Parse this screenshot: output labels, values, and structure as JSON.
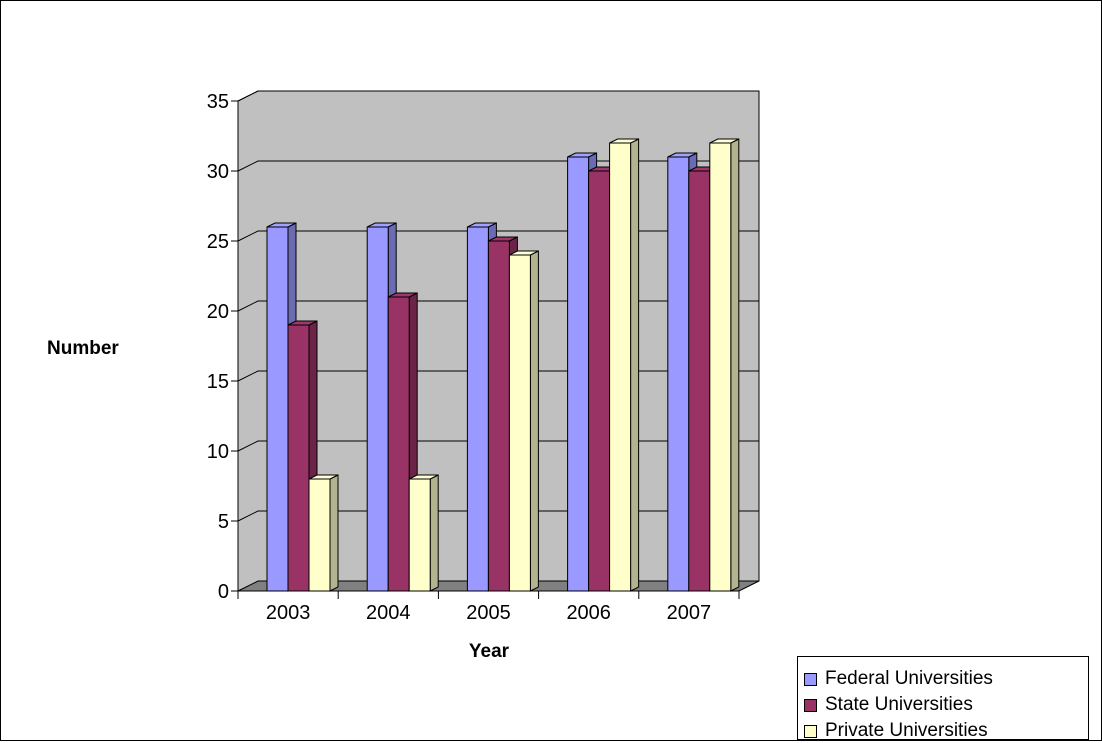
{
  "chart_data": {
    "type": "bar",
    "categories": [
      "2003",
      "2004",
      "2005",
      "2006",
      "2007"
    ],
    "series": [
      {
        "name": "Federal Universities",
        "values": [
          26,
          26,
          26,
          31,
          31
        ],
        "color": "#9999ff"
      },
      {
        "name": "State Universities",
        "values": [
          19,
          21,
          25,
          30,
          30
        ],
        "color": "#993366"
      },
      {
        "name": "Private Universities",
        "values": [
          8,
          8,
          24,
          32,
          32
        ],
        "color": "#ffffcc"
      }
    ],
    "xlabel": "Year",
    "ylabel": "Number",
    "ylim": [
      0,
      35
    ],
    "yticks": [
      "0",
      "5",
      "10",
      "15",
      "20",
      "25",
      "30",
      "35"
    ],
    "grid": true,
    "legend_position": "bottom-right",
    "wall_color": "#c0c0c0",
    "floor_color": "#808080"
  }
}
